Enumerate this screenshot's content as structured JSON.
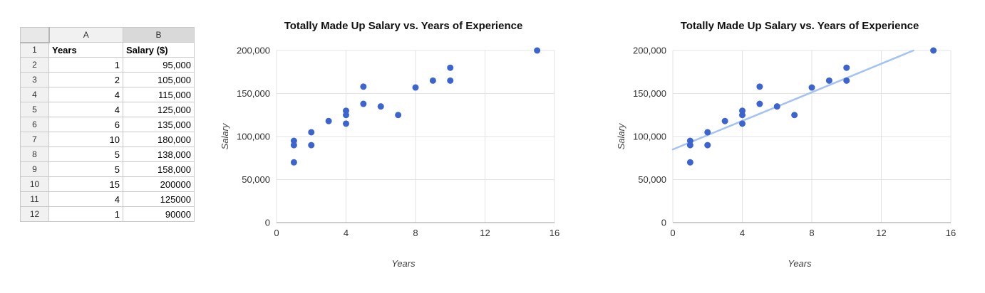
{
  "spreadsheet": {
    "col_headers": [
      "A",
      "B"
    ],
    "rows": [
      {
        "n": "1",
        "a": "Years",
        "b": "Salary ($)",
        "header": true
      },
      {
        "n": "2",
        "a": "1",
        "b": "95,000"
      },
      {
        "n": "3",
        "a": "2",
        "b": "105,000"
      },
      {
        "n": "4",
        "a": "4",
        "b": "115,000"
      },
      {
        "n": "5",
        "a": "4",
        "b": "125,000"
      },
      {
        "n": "6",
        "a": "6",
        "b": "135,000"
      },
      {
        "n": "7",
        "a": "10",
        "b": "180,000"
      },
      {
        "n": "8",
        "a": "5",
        "b": "138,000"
      },
      {
        "n": "9",
        "a": "5",
        "b": "158,000"
      },
      {
        "n": "10",
        "a": "15",
        "b": "200000"
      },
      {
        "n": "11",
        "a": "4",
        "b": "125000"
      },
      {
        "n": "12",
        "a": "1",
        "b": "90000"
      }
    ]
  },
  "chart_data": [
    {
      "type": "scatter",
      "title": "Totally Made Up Salary vs. Years of Experience",
      "xlabel": "Years",
      "ylabel": "Salary",
      "xlim": [
        0,
        16
      ],
      "ylim": [
        0,
        200000
      ],
      "x_ticks": [
        0,
        4,
        8,
        12,
        16
      ],
      "x_tick_labels": [
        "0",
        "4",
        "8",
        "12",
        "16"
      ],
      "y_ticks": [
        0,
        50000,
        100000,
        150000,
        200000
      ],
      "y_tick_labels": [
        "0",
        "50,000",
        "100,000",
        "150,000",
        "200,000"
      ],
      "grid": true,
      "point_color": "#3c64cf",
      "points": [
        [
          1,
          95000
        ],
        [
          1,
          90000
        ],
        [
          1,
          70000
        ],
        [
          2,
          105000
        ],
        [
          2,
          90000
        ],
        [
          3,
          118000
        ],
        [
          4,
          115000
        ],
        [
          4,
          125000
        ],
        [
          4,
          130000
        ],
        [
          5,
          138000
        ],
        [
          5,
          158000
        ],
        [
          6,
          135000
        ],
        [
          7,
          125000
        ],
        [
          8,
          157000
        ],
        [
          9,
          165000
        ],
        [
          10,
          180000
        ],
        [
          10,
          165000
        ],
        [
          15,
          200000
        ]
      ],
      "trendline": null
    },
    {
      "type": "scatter",
      "title": "Totally Made Up Salary vs. Years of Experience",
      "xlabel": "Years",
      "ylabel": "Salary",
      "xlim": [
        0,
        16
      ],
      "ylim": [
        0,
        200000
      ],
      "x_ticks": [
        0,
        4,
        8,
        12,
        16
      ],
      "x_tick_labels": [
        "0",
        "4",
        "8",
        "12",
        "16"
      ],
      "y_ticks": [
        0,
        50000,
        100000,
        150000,
        200000
      ],
      "y_tick_labels": [
        "0",
        "50,000",
        "100,000",
        "150,000",
        "200,000"
      ],
      "grid": true,
      "point_color": "#3c64cf",
      "points": [
        [
          1,
          95000
        ],
        [
          1,
          90000
        ],
        [
          1,
          70000
        ],
        [
          2,
          105000
        ],
        [
          2,
          90000
        ],
        [
          3,
          118000
        ],
        [
          4,
          115000
        ],
        [
          4,
          125000
        ],
        [
          4,
          130000
        ],
        [
          5,
          138000
        ],
        [
          5,
          158000
        ],
        [
          6,
          135000
        ],
        [
          7,
          125000
        ],
        [
          8,
          157000
        ],
        [
          9,
          165000
        ],
        [
          10,
          180000
        ],
        [
          10,
          165000
        ],
        [
          15,
          200000
        ]
      ],
      "trendline": {
        "x1": 0,
        "y1": 85000,
        "x2": 13.85,
        "y2": 200000,
        "color": "#a4c2f4"
      }
    }
  ]
}
